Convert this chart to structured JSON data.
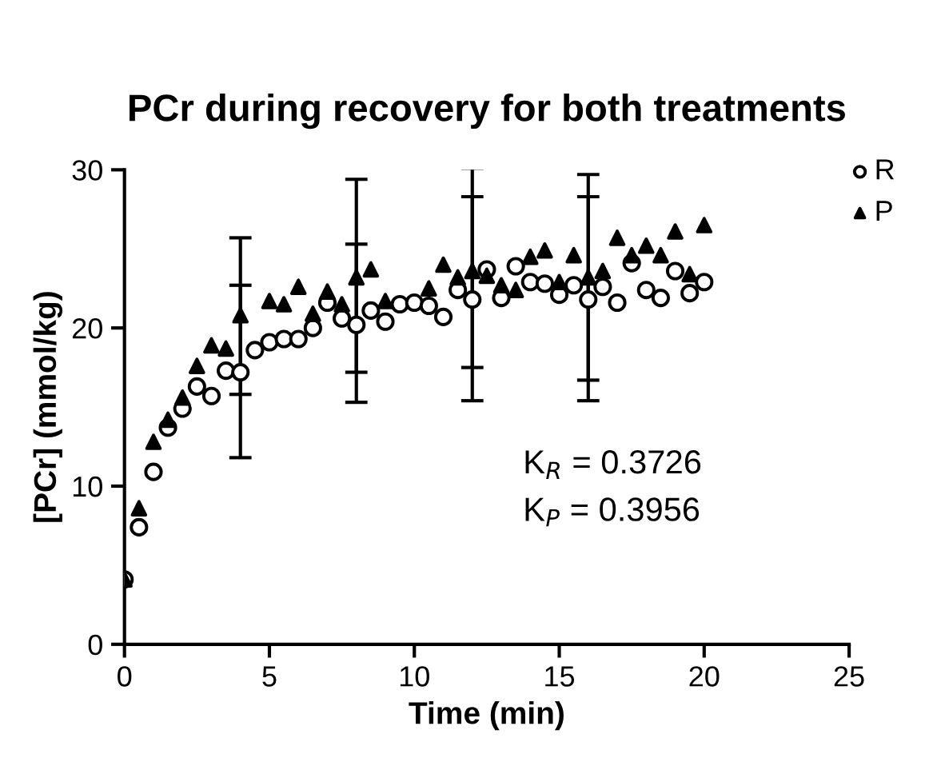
{
  "chart_data": {
    "type": "scatter",
    "title": "PCr during recovery for both treatments",
    "xlabel": "Time (min)",
    "ylabel": "[PCr] (mmol/kg)",
    "x": [
      0,
      0.5,
      1,
      1.5,
      2,
      2.5,
      3,
      3.5,
      4,
      4.5,
      5,
      5.5,
      6,
      6.5,
      7,
      7.5,
      8,
      8.5,
      9,
      9.5,
      10,
      10.5,
      11,
      11.5,
      12,
      12.5,
      13,
      13.5,
      14,
      14.5,
      15,
      15.5,
      16,
      16.5,
      17,
      17.5,
      18,
      18.5,
      19,
      19.5,
      20
    ],
    "series": [
      {
        "name": "R",
        "color": "#000000",
        "marker": "circle",
        "values": [
          4.1,
          7.4,
          10.9,
          13.7,
          14.9,
          16.3,
          15.7,
          17.3,
          17.2,
          18.6,
          19.1,
          19.3,
          19.3,
          20.0,
          21.6,
          20.6,
          20.2,
          21.1,
          20.4,
          21.5,
          21.6,
          21.4,
          20.7,
          22.4,
          21.8,
          23.7,
          21.9,
          23.9,
          22.9,
          22.8,
          22.1,
          22.7,
          21.8,
          22.6,
          21.6,
          24.1,
          22.4,
          21.9,
          23.6,
          22.2,
          22.9
        ],
        "errors": [
          null,
          null,
          null,
          null,
          null,
          null,
          null,
          null,
          [
            11.8,
            22.7
          ],
          null,
          null,
          null,
          null,
          null,
          null,
          null,
          [
            15.3,
            25.3
          ],
          null,
          null,
          null,
          null,
          null,
          null,
          null,
          [
            15.4,
            28.3
          ],
          null,
          null,
          null,
          null,
          null,
          null,
          null,
          [
            15.4,
            28.3
          ],
          null,
          null,
          null,
          null,
          null,
          null,
          null,
          null
        ]
      },
      {
        "name": "P",
        "color": "#000000",
        "marker": "triangle",
        "values": [
          4.1,
          8.6,
          12.8,
          14.2,
          15.6,
          17.6,
          18.9,
          18.7,
          20.8,
          null,
          21.7,
          21.5,
          22.6,
          20.9,
          22.3,
          21.5,
          23.2,
          23.7,
          21.7,
          null,
          null,
          22.5,
          24.0,
          23.2,
          23.6,
          23.3,
          22.7,
          22.4,
          24.5,
          24.9,
          22.9,
          24.6,
          23.2,
          23.6,
          25.7,
          24.6,
          25.2,
          24.6,
          26.1,
          23.4,
          26.5
        ],
        "errors": [
          null,
          null,
          null,
          null,
          null,
          null,
          null,
          null,
          [
            15.8,
            25.7
          ],
          null,
          null,
          null,
          null,
          null,
          null,
          null,
          [
            17.2,
            29.4
          ],
          null,
          null,
          null,
          null,
          null,
          null,
          null,
          [
            17.5,
            30.1
          ],
          null,
          null,
          null,
          null,
          null,
          null,
          null,
          [
            16.7,
            29.7
          ],
          null,
          null,
          null,
          null,
          null,
          null,
          null,
          null
        ]
      }
    ],
    "xlim": [
      0,
      25
    ],
    "xticks": [
      0,
      5,
      10,
      15,
      20,
      25
    ],
    "ylim": [
      0,
      30
    ],
    "yticks": [
      0,
      10,
      20,
      30
    ],
    "grid": false,
    "legend": "top right",
    "annotations": [
      "K$_{R}$ = 0.3726",
      "K$_{P}$ = 0.3956"
    ]
  }
}
